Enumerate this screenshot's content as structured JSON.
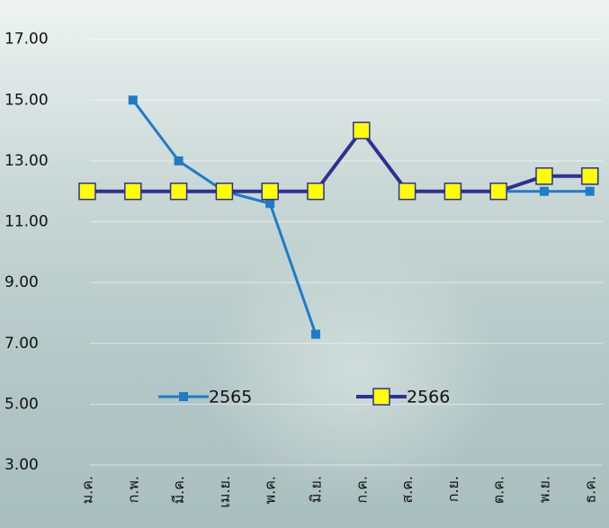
{
  "chart_data": {
    "type": "line",
    "categories": [
      "ม.ค.",
      "ก.พ.",
      "มี.ค.",
      "เม.ย.",
      "พ.ค.",
      "มิ.ย.",
      "ก.ค.",
      "ส.ค.",
      "ก.ย.",
      "ต.ค.",
      "พ.ย.",
      "ธ.ค."
    ],
    "series": [
      {
        "name": "2565",
        "color": "#1f7cc6",
        "values": [
          null,
          15.0,
          13.0,
          12.0,
          11.6,
          7.3,
          null,
          12.0,
          12.0,
          12.0,
          12.0,
          12.0
        ]
      },
      {
        "name": "2566",
        "color": "#2e3192",
        "values": [
          12.0,
          12.0,
          12.0,
          12.0,
          12.0,
          12.0,
          14.0,
          12.0,
          12.0,
          12.0,
          12.5,
          12.5
        ]
      }
    ],
    "ylim": [
      3,
      17.7
    ],
    "yticks": [
      {
        "value": 3,
        "label": "3.00"
      },
      {
        "value": 5,
        "label": "5.00"
      },
      {
        "value": 7,
        "label": "7.00"
      },
      {
        "value": 9,
        "label": "9.00"
      },
      {
        "value": 11,
        "label": "11.00"
      },
      {
        "value": 13,
        "label": "13.00"
      },
      {
        "value": 15,
        "label": "15.00"
      },
      {
        "value": 17,
        "label": "17.00"
      }
    ],
    "grid": true
  }
}
